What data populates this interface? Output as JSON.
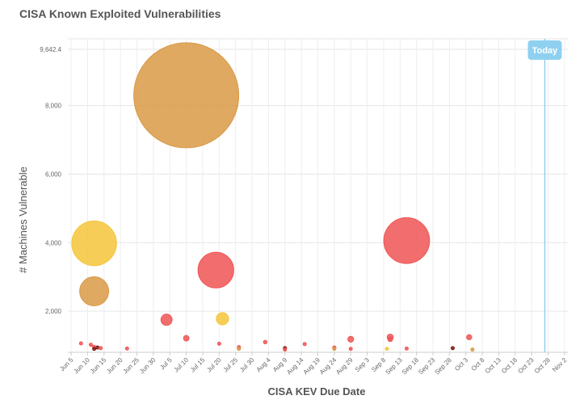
{
  "chart_data": {
    "type": "scatter",
    "title": "CISA Known Exploited Vulnerabilities",
    "xlabel": "CISA KEV Due Date",
    "ylabel": "# Machines Vulnerable",
    "x_ticks": [
      "Jun 5",
      "Jun 10",
      "Jun 15",
      "Jun 20",
      "Jun 25",
      "Jun 30",
      "Jul 5",
      "Jul 10",
      "Jul 15",
      "Jul 20",
      "Jul 25",
      "Jul 30",
      "Aug 4",
      "Aug 9",
      "Aug 14",
      "Aug 19",
      "Aug 24",
      "Aug 29",
      "Sep 3",
      "Sep 8",
      "Sep 13",
      "Sep 18",
      "Sep 23",
      "Sep 28",
      "Oct 3",
      "Oct 8",
      "Oct 13",
      "Oct 18",
      "Oct 23",
      "Oct 28",
      "Nov 2"
    ],
    "y_ticks": [
      2000,
      4000,
      6000,
      8000,
      9642.4
    ],
    "y_tick_labels": [
      "2,000",
      "4,000",
      "6,000",
      "8,000",
      "9,642.4"
    ],
    "ylim": [
      800,
      9642.4
    ],
    "xlim": [
      "2022-06-04",
      "2022-11-03"
    ],
    "grid": true,
    "today_marker": {
      "label": "Today",
      "date": "2022-10-27",
      "color": "#8fd0f0"
    },
    "colors": {
      "critical": "#f05555",
      "high": "#d99a45",
      "medium": "#f5c53a",
      "dark": "#7a1a10"
    },
    "points": [
      {
        "date": "2022-07-10",
        "machines": 8300,
        "size": 9400,
        "severity": "high"
      },
      {
        "date": "2022-06-12",
        "machines": 3980,
        "size": 4000,
        "severity": "medium"
      },
      {
        "date": "2022-06-12",
        "machines": 2580,
        "size": 2600,
        "severity": "high"
      },
      {
        "date": "2022-07-19",
        "machines": 3200,
        "size": 3200,
        "severity": "critical"
      },
      {
        "date": "2022-09-15",
        "machines": 4060,
        "size": 4100,
        "severity": "critical"
      },
      {
        "date": "2022-07-21",
        "machines": 1780,
        "size": 1100,
        "severity": "medium"
      },
      {
        "date": "2022-07-04",
        "machines": 1750,
        "size": 1000,
        "severity": "critical"
      },
      {
        "date": "2022-07-10",
        "machines": 1210,
        "size": 500,
        "severity": "critical"
      },
      {
        "date": "2022-09-10",
        "machines": 1240,
        "size": 550,
        "severity": "critical"
      },
      {
        "date": "2022-09-10",
        "machines": 1180,
        "size": 420,
        "severity": "critical"
      },
      {
        "date": "2022-08-29",
        "machines": 1180,
        "size": 520,
        "severity": "critical"
      },
      {
        "date": "2022-10-04",
        "machines": 1240,
        "size": 460,
        "severity": "critical"
      },
      {
        "date": "2022-08-03",
        "machines": 1100,
        "size": 320,
        "severity": "critical"
      },
      {
        "date": "2022-07-20",
        "machines": 1050,
        "size": 160,
        "severity": "critical"
      },
      {
        "date": "2022-08-15",
        "machines": 1040,
        "size": 180,
        "severity": "critical"
      },
      {
        "date": "2022-06-08",
        "machines": 1060,
        "size": 180,
        "severity": "critical"
      },
      {
        "date": "2022-06-11",
        "machines": 1020,
        "size": 160,
        "severity": "critical"
      },
      {
        "date": "2022-06-12",
        "machines": 960,
        "size": 170,
        "severity": "critical"
      },
      {
        "date": "2022-06-13",
        "machines": 940,
        "size": 220,
        "severity": "dark"
      },
      {
        "date": "2022-06-14",
        "machines": 920,
        "size": 180,
        "severity": "critical"
      },
      {
        "date": "2022-06-12",
        "machines": 900,
        "size": 160,
        "severity": "dark"
      },
      {
        "date": "2022-06-22",
        "machines": 910,
        "size": 160,
        "severity": "critical"
      },
      {
        "date": "2022-07-26",
        "machines": 950,
        "size": 150,
        "severity": "critical"
      },
      {
        "date": "2022-07-26",
        "machines": 900,
        "size": 140,
        "severity": "high"
      },
      {
        "date": "2022-08-09",
        "machines": 920,
        "size": 190,
        "severity": "dark"
      },
      {
        "date": "2022-08-09",
        "machines": 880,
        "size": 140,
        "severity": "critical"
      },
      {
        "date": "2022-08-24",
        "machines": 940,
        "size": 160,
        "severity": "critical"
      },
      {
        "date": "2022-08-24",
        "machines": 900,
        "size": 140,
        "severity": "high"
      },
      {
        "date": "2022-08-29",
        "machines": 900,
        "size": 140,
        "severity": "critical"
      },
      {
        "date": "2022-09-09",
        "machines": 900,
        "size": 170,
        "severity": "medium"
      },
      {
        "date": "2022-09-15",
        "machines": 910,
        "size": 150,
        "severity": "critical"
      },
      {
        "date": "2022-09-29",
        "machines": 920,
        "size": 180,
        "severity": "dark"
      },
      {
        "date": "2022-10-05",
        "machines": 880,
        "size": 140,
        "severity": "high"
      }
    ]
  }
}
